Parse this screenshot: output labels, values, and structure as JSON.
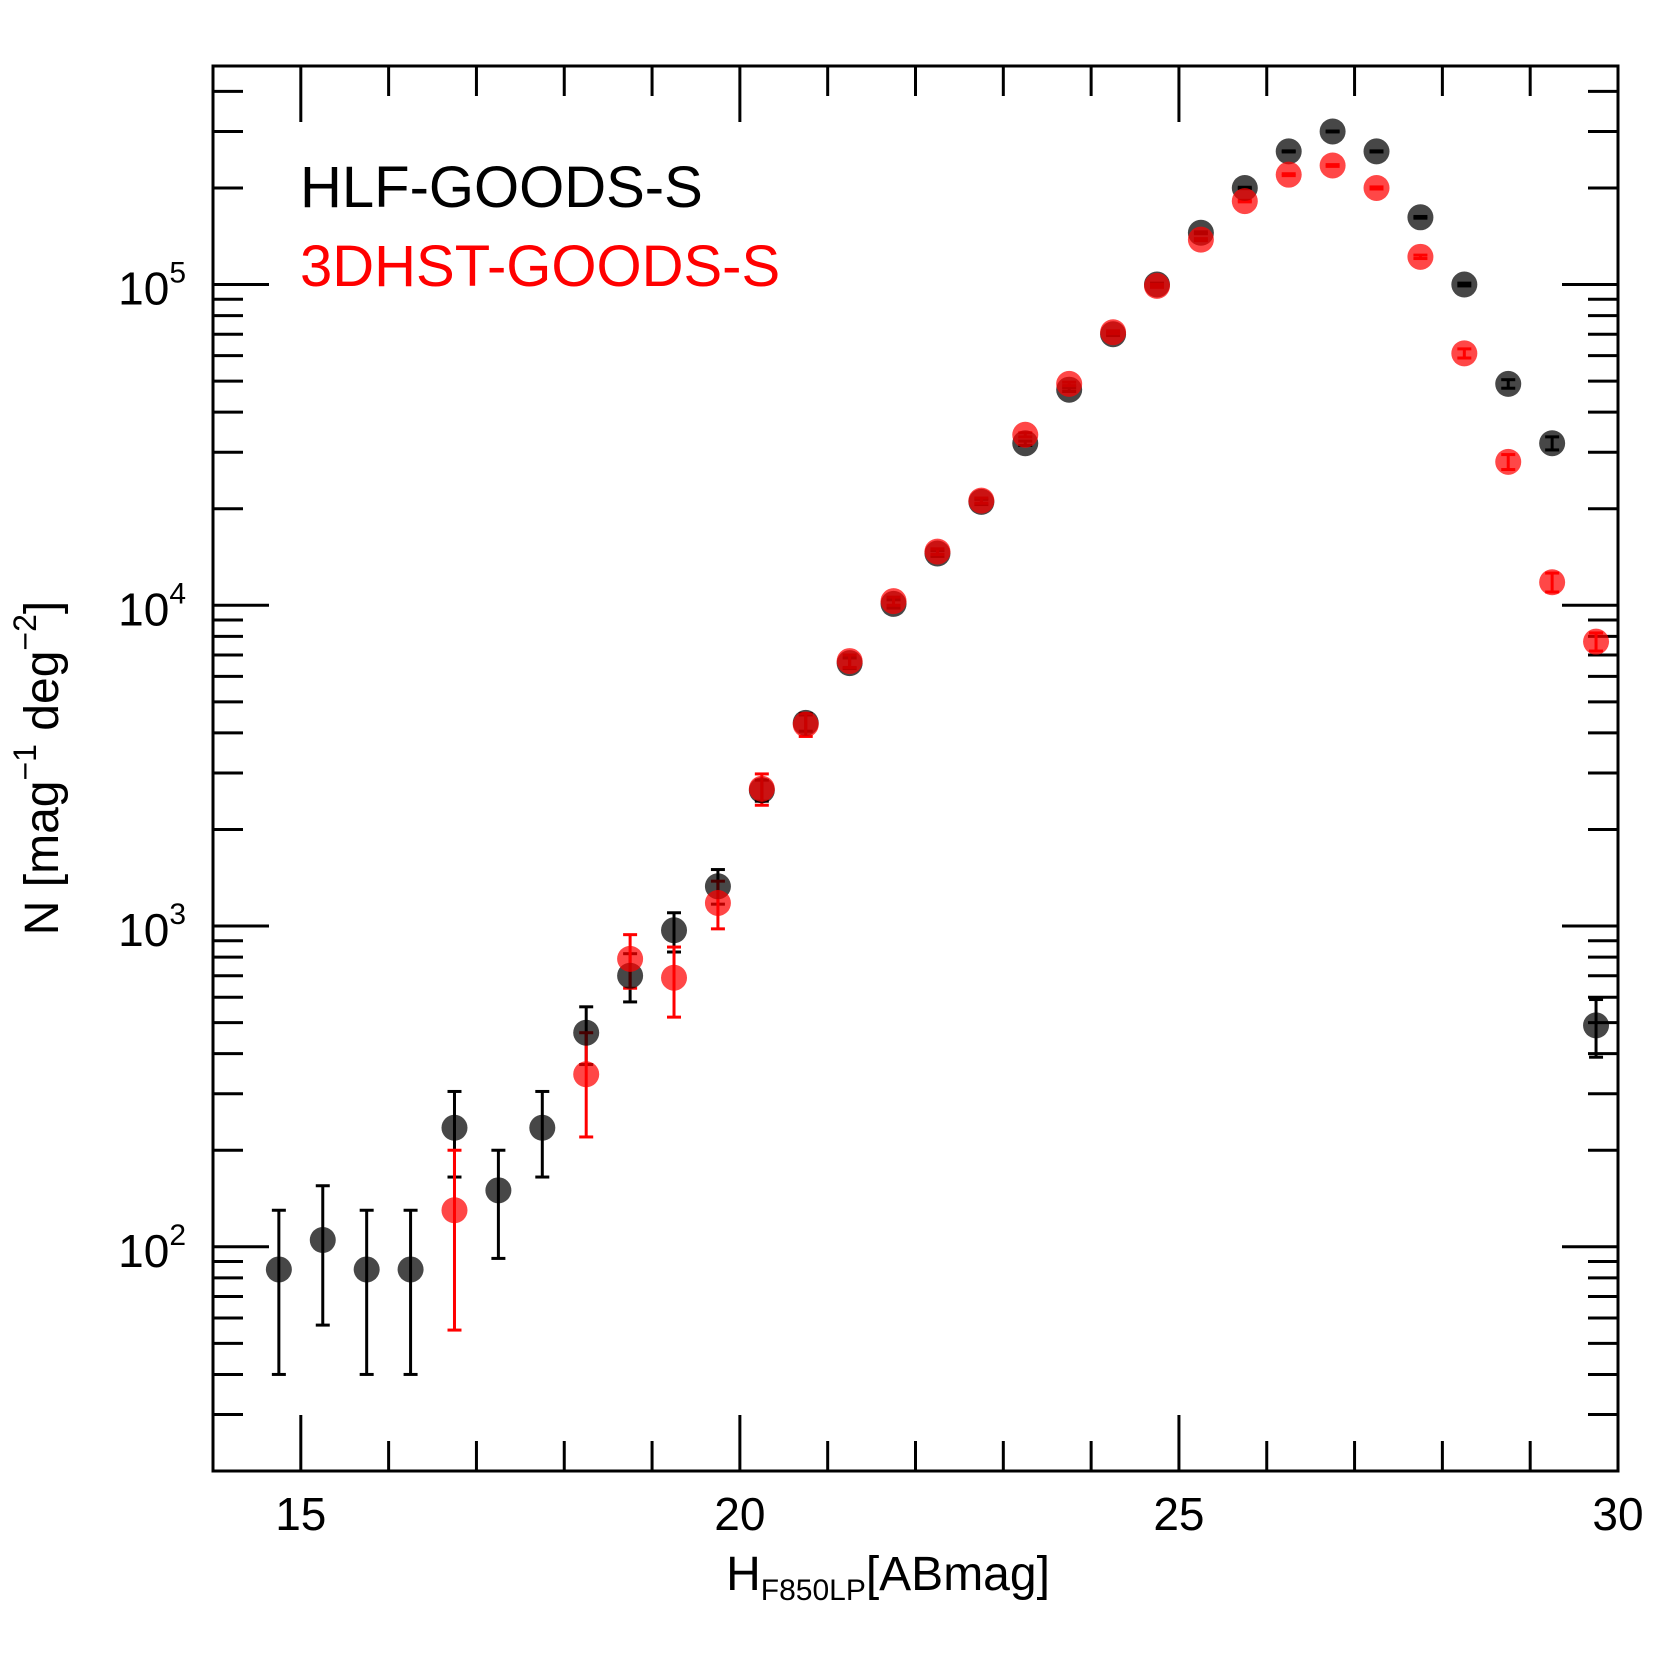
{
  "chart_data": {
    "type": "scatter",
    "title": "",
    "xlabel_main": "H",
    "xlabel_sub": "F850LP",
    "xlabel_unit": "[ABmag]",
    "ylabel": "N [mag",
    "ylabel_exp1": "−1",
    "ylabel_mid": " deg",
    "ylabel_exp2": "−2",
    "ylabel_end": "]",
    "xlim": [
      14,
      30
    ],
    "ylim": [
      20,
      480000
    ],
    "yscale": "log",
    "x_ticks": [
      "15",
      "20",
      "25",
      "30"
    ],
    "y_ticks": [
      {
        "base": "10",
        "exp": "2"
      },
      {
        "base": "10",
        "exp": "3"
      },
      {
        "base": "10",
        "exp": "4"
      },
      {
        "base": "10",
        "exp": "5"
      }
    ],
    "grid": false,
    "legend_position": "top-left",
    "series": [
      {
        "name": "HLF-GOODS-S",
        "color": "#000000",
        "points": [
          {
            "x": 14.75,
            "y": 85,
            "lo": 40,
            "hi": 130
          },
          {
            "x": 15.25,
            "y": 105,
            "lo": 57,
            "hi": 155
          },
          {
            "x": 15.75,
            "y": 85,
            "lo": 40,
            "hi": 130
          },
          {
            "x": 16.25,
            "y": 85,
            "lo": 40,
            "hi": 130
          },
          {
            "x": 16.75,
            "y": 235,
            "lo": 165,
            "hi": 305
          },
          {
            "x": 17.25,
            "y": 150,
            "lo": 92,
            "hi": 200
          },
          {
            "x": 17.75,
            "y": 235,
            "lo": 165,
            "hi": 305
          },
          {
            "x": 18.25,
            "y": 465,
            "lo": 370,
            "hi": 560
          },
          {
            "x": 18.75,
            "y": 700,
            "lo": 580,
            "hi": 820
          },
          {
            "x": 19.25,
            "y": 970,
            "lo": 830,
            "hi": 1100
          },
          {
            "x": 19.75,
            "y": 1330,
            "lo": 1170,
            "hi": 1500
          },
          {
            "x": 20.25,
            "y": 2650,
            "lo": 2450,
            "hi": 2850
          },
          {
            "x": 20.75,
            "y": 4300,
            "lo": 4050,
            "hi": 4550
          },
          {
            "x": 21.25,
            "y": 6600,
            "lo": 6350,
            "hi": 6850
          },
          {
            "x": 21.75,
            "y": 10100,
            "lo": 9800,
            "hi": 10400
          },
          {
            "x": 22.25,
            "y": 14500,
            "lo": 14200,
            "hi": 14800
          },
          {
            "x": 22.75,
            "y": 21000,
            "lo": 20600,
            "hi": 21400
          },
          {
            "x": 23.25,
            "y": 32000,
            "lo": 31500,
            "hi": 32500
          },
          {
            "x": 23.75,
            "y": 47000,
            "lo": 46400,
            "hi": 47600
          },
          {
            "x": 24.25,
            "y": 70000,
            "lo": 69300,
            "hi": 70700
          },
          {
            "x": 24.75,
            "y": 100000,
            "lo": 99000,
            "hi": 101000
          },
          {
            "x": 25.25,
            "y": 145000,
            "lo": 144000,
            "hi": 146000
          },
          {
            "x": 25.75,
            "y": 200000,
            "lo": 199000,
            "hi": 201000
          },
          {
            "x": 26.25,
            "y": 260000,
            "lo": 259000,
            "hi": 261000
          },
          {
            "x": 26.75,
            "y": 300000,
            "lo": 299000,
            "hi": 301000
          },
          {
            "x": 27.25,
            "y": 260000,
            "lo": 259000,
            "hi": 261000
          },
          {
            "x": 27.75,
            "y": 162000,
            "lo": 161000,
            "hi": 163000
          },
          {
            "x": 28.25,
            "y": 100000,
            "lo": 99000,
            "hi": 101000
          },
          {
            "x": 28.75,
            "y": 49000,
            "lo": 47500,
            "hi": 50500
          },
          {
            "x": 29.25,
            "y": 32000,
            "lo": 30500,
            "hi": 33500
          },
          {
            "x": 29.75,
            "y": 490,
            "lo": 390,
            "hi": 590
          }
        ]
      },
      {
        "name": "3DHST-GOODS-S",
        "color": "#ff0000",
        "points": [
          {
            "x": 16.75,
            "y": 130,
            "lo": 55,
            "hi": 200
          },
          {
            "x": 18.25,
            "y": 345,
            "lo": 220,
            "hi": 465
          },
          {
            "x": 18.75,
            "y": 790,
            "lo": 640,
            "hi": 940
          },
          {
            "x": 19.25,
            "y": 690,
            "lo": 520,
            "hi": 860
          },
          {
            "x": 19.75,
            "y": 1180,
            "lo": 980,
            "hi": 1380
          },
          {
            "x": 20.25,
            "y": 2680,
            "lo": 2380,
            "hi": 2980
          },
          {
            "x": 20.75,
            "y": 4250,
            "lo": 3900,
            "hi": 4600
          },
          {
            "x": 21.25,
            "y": 6700,
            "lo": 6400,
            "hi": 7000
          },
          {
            "x": 21.75,
            "y": 10300,
            "lo": 10000,
            "hi": 10600
          },
          {
            "x": 22.25,
            "y": 14700,
            "lo": 14400,
            "hi": 15000
          },
          {
            "x": 22.75,
            "y": 21200,
            "lo": 20800,
            "hi": 21600
          },
          {
            "x": 23.25,
            "y": 34000,
            "lo": 33500,
            "hi": 34500
          },
          {
            "x": 23.75,
            "y": 49000,
            "lo": 48400,
            "hi": 49600
          },
          {
            "x": 24.25,
            "y": 71000,
            "lo": 70300,
            "hi": 71700
          },
          {
            "x": 24.75,
            "y": 99000,
            "lo": 98000,
            "hi": 100000
          },
          {
            "x": 25.25,
            "y": 138000,
            "lo": 137000,
            "hi": 139000
          },
          {
            "x": 25.75,
            "y": 182000,
            "lo": 181000,
            "hi": 183000
          },
          {
            "x": 26.25,
            "y": 220000,
            "lo": 218500,
            "hi": 221500
          },
          {
            "x": 26.75,
            "y": 235000,
            "lo": 233500,
            "hi": 236500
          },
          {
            "x": 27.25,
            "y": 200000,
            "lo": 198500,
            "hi": 201500
          },
          {
            "x": 27.75,
            "y": 122000,
            "lo": 120500,
            "hi": 123500
          },
          {
            "x": 28.25,
            "y": 61000,
            "lo": 59000,
            "hi": 63000
          },
          {
            "x": 28.75,
            "y": 28000,
            "lo": 26500,
            "hi": 29500
          },
          {
            "x": 29.25,
            "y": 11800,
            "lo": 11000,
            "hi": 12600
          },
          {
            "x": 29.75,
            "y": 7700,
            "lo": 7200,
            "hi": 8200
          }
        ]
      }
    ]
  }
}
